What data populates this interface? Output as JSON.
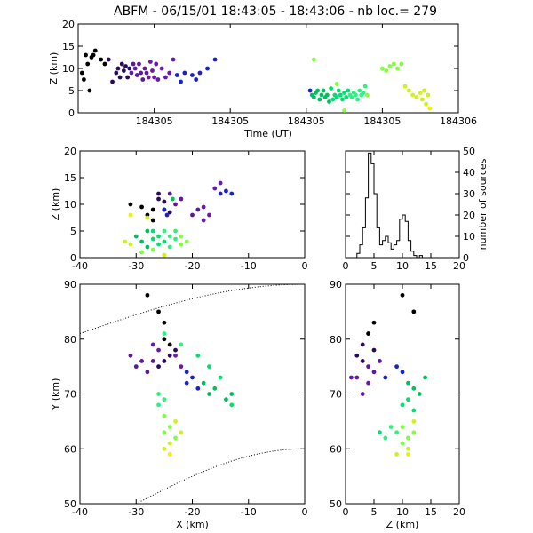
{
  "title": "ABFM - 06/15/01 18:43:05 - 18:43:06 - nb loc.=     279",
  "chart_data": [
    {
      "id": "time_height",
      "type": "scatter",
      "xlabel": "Time (UT)",
      "ylabel": "Z (km)",
      "xlim": [
        0,
        1
      ],
      "ylim": [
        0,
        20
      ],
      "xticks": [
        0.2,
        0.4,
        0.6,
        0.8,
        1.0
      ],
      "xtick_labels": [
        "184305",
        "184305",
        "184305",
        "184305",
        "184306"
      ],
      "yticks": [
        0,
        5,
        10,
        15,
        20
      ],
      "points": [
        [
          0.01,
          9
        ],
        [
          0.015,
          7.5
        ],
        [
          0.02,
          13
        ],
        [
          0.025,
          11
        ],
        [
          0.03,
          5
        ],
        [
          0.035,
          12.5
        ],
        [
          0.04,
          13
        ],
        [
          0.045,
          14
        ],
        [
          0.06,
          12
        ],
        [
          0.07,
          11
        ],
        [
          0.08,
          12
        ],
        [
          0.09,
          7
        ],
        [
          0.1,
          9
        ],
        [
          0.105,
          10
        ],
        [
          0.11,
          8
        ],
        [
          0.115,
          11
        ],
        [
          0.12,
          9.5
        ],
        [
          0.125,
          10.5
        ],
        [
          0.13,
          8
        ],
        [
          0.135,
          10
        ],
        [
          0.14,
          9
        ],
        [
          0.145,
          11
        ],
        [
          0.15,
          10
        ],
        [
          0.155,
          8.5
        ],
        [
          0.16,
          11
        ],
        [
          0.165,
          9
        ],
        [
          0.17,
          7.5
        ],
        [
          0.175,
          10
        ],
        [
          0.18,
          9
        ],
        [
          0.185,
          8
        ],
        [
          0.19,
          11.5
        ],
        [
          0.195,
          9.5
        ],
        [
          0.2,
          8
        ],
        [
          0.205,
          11
        ],
        [
          0.21,
          7.5
        ],
        [
          0.22,
          10
        ],
        [
          0.23,
          8
        ],
        [
          0.24,
          9
        ],
        [
          0.25,
          12
        ],
        [
          0.26,
          8.5
        ],
        [
          0.27,
          7
        ],
        [
          0.28,
          9
        ],
        [
          0.3,
          8.5
        ],
        [
          0.31,
          7.5
        ],
        [
          0.32,
          9
        ],
        [
          0.34,
          10
        ],
        [
          0.36,
          12
        ],
        [
          0.61,
          5
        ],
        [
          0.615,
          4
        ],
        [
          0.62,
          3.5
        ],
        [
          0.625,
          4.5
        ],
        [
          0.63,
          5
        ],
        [
          0.635,
          3
        ],
        [
          0.64,
          4
        ],
        [
          0.645,
          5
        ],
        [
          0.65,
          3.5
        ],
        [
          0.655,
          4
        ],
        [
          0.66,
          2.5
        ],
        [
          0.665,
          5.5
        ],
        [
          0.67,
          3
        ],
        [
          0.675,
          4
        ],
        [
          0.68,
          3.5
        ],
        [
          0.685,
          5
        ],
        [
          0.69,
          4
        ],
        [
          0.695,
          3
        ],
        [
          0.7,
          4.5
        ],
        [
          0.705,
          3.5
        ],
        [
          0.71,
          5
        ],
        [
          0.715,
          4
        ],
        [
          0.72,
          3.5
        ],
        [
          0.725,
          4.5
        ],
        [
          0.73,
          4
        ],
        [
          0.735,
          3
        ],
        [
          0.74,
          5
        ],
        [
          0.745,
          4
        ],
        [
          0.75,
          4.5
        ],
        [
          0.755,
          6
        ],
        [
          0.76,
          4
        ],
        [
          0.62,
          12
        ],
        [
          0.68,
          6.5
        ],
        [
          0.7,
          0.5
        ],
        [
          0.8,
          10
        ],
        [
          0.81,
          9.5
        ],
        [
          0.82,
          10.5
        ],
        [
          0.83,
          11
        ],
        [
          0.84,
          10
        ],
        [
          0.85,
          11
        ],
        [
          0.86,
          6
        ],
        [
          0.87,
          5
        ],
        [
          0.88,
          4
        ],
        [
          0.89,
          3.5
        ],
        [
          0.9,
          4.5
        ],
        [
          0.905,
          3
        ],
        [
          0.91,
          5
        ],
        [
          0.915,
          2
        ],
        [
          0.92,
          4
        ],
        [
          0.925,
          1
        ]
      ]
    },
    {
      "id": "xz",
      "type": "scatter",
      "ylabel": "Z (km)",
      "xlim": [
        -40,
        0
      ],
      "ylim": [
        0,
        20
      ],
      "xticks": [
        -40,
        -30,
        -20,
        -10,
        0
      ],
      "yticks": [
        0,
        5,
        10,
        15,
        20
      ],
      "points": [
        [
          -31,
          10
        ],
        [
          -29,
          9.5
        ],
        [
          -28,
          8
        ],
        [
          -27,
          9
        ],
        [
          -27,
          7
        ],
        [
          -26,
          12
        ],
        [
          -26,
          11
        ],
        [
          -25,
          10.5
        ],
        [
          -25,
          9
        ],
        [
          -24,
          8.5
        ],
        [
          -24,
          12
        ],
        [
          -23,
          10
        ],
        [
          -22,
          11
        ],
        [
          -20,
          8
        ],
        [
          -19,
          9
        ],
        [
          -18,
          7
        ],
        [
          -18,
          9.5
        ],
        [
          -17,
          8
        ],
        [
          -16,
          13
        ],
        [
          -15,
          14
        ],
        [
          -15,
          12
        ],
        [
          -14,
          12.5
        ],
        [
          -13,
          12
        ],
        [
          -24.5,
          8
        ],
        [
          -25,
          9
        ],
        [
          -23.5,
          11
        ],
        [
          -30,
          4
        ],
        [
          -29,
          3
        ],
        [
          -28,
          5
        ],
        [
          -28,
          2
        ],
        [
          -27,
          3.5
        ],
        [
          -27,
          5
        ],
        [
          -26,
          4
        ],
        [
          -26,
          2.5
        ],
        [
          -25,
          3
        ],
        [
          -25,
          5
        ],
        [
          -24,
          4
        ],
        [
          -24,
          2
        ],
        [
          -23,
          3.5
        ],
        [
          -23,
          5
        ],
        [
          -22,
          4
        ],
        [
          -22,
          2.5
        ],
        [
          -21,
          3
        ],
        [
          -29,
          1
        ],
        [
          -27,
          1.5
        ],
        [
          -25,
          0.5
        ],
        [
          -28,
          7.5
        ],
        [
          -31,
          2.5
        ],
        [
          -32,
          3
        ],
        [
          -31,
          8
        ]
      ]
    },
    {
      "id": "histogram",
      "type": "bar",
      "ylabel": "number of sources",
      "xlim": [
        0,
        20
      ],
      "ylim": [
        0,
        50
      ],
      "xticks": [
        0,
        5,
        10,
        15,
        20
      ],
      "yticks": [
        0,
        10,
        20,
        30,
        40,
        50
      ],
      "bin_width": 0.5,
      "values": [
        0,
        0,
        0,
        0,
        2,
        6,
        14,
        28,
        49,
        44,
        30,
        14,
        6,
        8,
        10,
        7,
        4,
        6,
        8,
        18,
        20,
        17,
        8,
        3,
        1,
        0,
        1,
        0,
        0,
        0,
        0,
        0,
        0,
        0,
        0,
        0,
        0,
        0,
        0,
        0
      ]
    },
    {
      "id": "xy",
      "type": "scatter",
      "xlabel": "X (km)",
      "ylabel": "Y (km)",
      "xlim": [
        -40,
        0
      ],
      "ylim": [
        50,
        90
      ],
      "xticks": [
        -40,
        -30,
        -20,
        -10,
        0
      ],
      "yticks": [
        50,
        60,
        70,
        80,
        90
      ],
      "points": [
        [
          -28,
          88
        ],
        [
          -26,
          85
        ],
        [
          -25,
          83
        ],
        [
          -25,
          80
        ],
        [
          -24,
          79
        ],
        [
          -23,
          78
        ],
        [
          -24,
          77
        ],
        [
          -25,
          76
        ],
        [
          -26,
          75
        ],
        [
          -27,
          76
        ],
        [
          -28,
          74
        ],
        [
          -29,
          76
        ],
        [
          -30,
          75
        ],
        [
          -31,
          77
        ],
        [
          -27,
          79
        ],
        [
          -26,
          78
        ],
        [
          -23,
          77
        ],
        [
          -22,
          75
        ],
        [
          -21,
          74
        ],
        [
          -21,
          72
        ],
        [
          -20,
          73
        ],
        [
          -19,
          71
        ],
        [
          -18,
          72
        ],
        [
          -17,
          70
        ],
        [
          -16,
          71
        ],
        [
          -14,
          69
        ],
        [
          -13,
          70
        ],
        [
          -13,
          68
        ],
        [
          -15,
          73
        ],
        [
          -17,
          75
        ],
        [
          -19,
          77
        ],
        [
          -22,
          79
        ],
        [
          -25,
          81
        ],
        [
          -26,
          70
        ],
        [
          -25,
          69
        ],
        [
          -26,
          68
        ],
        [
          -25,
          66
        ],
        [
          -24,
          64
        ],
        [
          -25,
          63
        ],
        [
          -23,
          62
        ],
        [
          -24,
          61
        ],
        [
          -25,
          60
        ],
        [
          -22,
          63
        ],
        [
          -23,
          65
        ],
        [
          -24,
          59
        ]
      ]
    },
    {
      "id": "zy",
      "type": "scatter",
      "xlabel": "Z (km)",
      "xlim": [
        0,
        20
      ],
      "ylim": [
        50,
        90
      ],
      "xticks": [
        0,
        5,
        10,
        15,
        20
      ],
      "yticks": [
        50,
        60,
        70,
        80,
        90
      ],
      "points": [
        [
          10,
          88
        ],
        [
          12,
          85
        ],
        [
          5,
          83
        ],
        [
          4,
          81
        ],
        [
          3,
          79
        ],
        [
          5,
          78
        ],
        [
          2,
          77
        ],
        [
          3,
          76
        ],
        [
          4,
          75
        ],
        [
          6,
          76
        ],
        [
          5,
          74
        ],
        [
          2,
          73
        ],
        [
          4,
          72
        ],
        [
          1,
          73
        ],
        [
          3,
          70
        ],
        [
          7,
          73
        ],
        [
          9,
          75
        ],
        [
          10,
          74
        ],
        [
          11,
          72
        ],
        [
          12,
          71
        ],
        [
          13,
          70
        ],
        [
          14,
          73
        ],
        [
          11,
          69
        ],
        [
          10,
          68
        ],
        [
          12,
          67
        ],
        [
          6,
          63
        ],
        [
          7,
          62
        ],
        [
          8,
          64
        ],
        [
          9,
          63
        ],
        [
          10,
          61
        ],
        [
          11,
          62
        ],
        [
          12,
          63
        ],
        [
          10,
          64
        ],
        [
          11,
          60
        ],
        [
          9,
          59
        ],
        [
          12,
          65
        ],
        [
          11,
          59
        ]
      ]
    }
  ]
}
